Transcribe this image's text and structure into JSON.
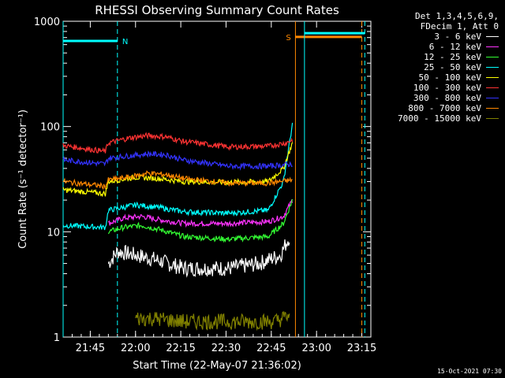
{
  "chart_data": {
    "type": "line",
    "title": "RHESSI Observing Summary Count Rates",
    "xlabel": "Start Time (22-May-07 21:36:02)",
    "ylabel": "Count Rate (s⁻¹ detector⁻¹)",
    "x_range_minutes": [
      0,
      102
    ],
    "x_ticks": [
      {
        "label": "21:45",
        "t": 9
      },
      {
        "label": "22:00",
        "t": 24
      },
      {
        "label": "22:15",
        "t": 39
      },
      {
        "label": "22:30",
        "t": 54
      },
      {
        "label": "22:45",
        "t": 69
      },
      {
        "label": "23:00",
        "t": 84
      },
      {
        "label": "23:15",
        "t": 99
      }
    ],
    "y_scale": "log",
    "ylim": [
      1,
      1000
    ],
    "y_ticks": [
      {
        "label": "1",
        "v": 1
      },
      {
        "label": "10",
        "v": 10
      },
      {
        "label": "100",
        "v": 100
      },
      {
        "label": "1000",
        "v": 1000
      }
    ],
    "legend_header": [
      "Det 1,3,4,5,6,9,",
      "FDecim 1, Att 0"
    ],
    "series": [
      {
        "name": "3 - 6 keV",
        "color": "#ffffff",
        "points": [
          [
            15,
            5
          ],
          [
            18,
            6.5
          ],
          [
            24,
            6
          ],
          [
            30,
            5.5
          ],
          [
            40,
            4.5
          ],
          [
            55,
            4.5
          ],
          [
            65,
            5
          ],
          [
            72,
            6
          ],
          [
            75,
            9
          ]
        ]
      },
      {
        "name": "6 - 12 keV",
        "color": "#ff33ff",
        "points": [
          [
            15,
            12
          ],
          [
            20,
            13.5
          ],
          [
            26,
            14
          ],
          [
            32,
            13
          ],
          [
            40,
            12
          ],
          [
            55,
            12
          ],
          [
            68,
            12.5
          ],
          [
            73,
            14
          ],
          [
            76,
            20
          ]
        ]
      },
      {
        "name": "12 - 25 keV",
        "color": "#33ff33",
        "points": [
          [
            15,
            10
          ],
          [
            20,
            11
          ],
          [
            26,
            11.5
          ],
          [
            32,
            10.5
          ],
          [
            40,
            9
          ],
          [
            55,
            8.5
          ],
          [
            68,
            9
          ],
          [
            73,
            12
          ],
          [
            76,
            20
          ]
        ]
      },
      {
        "name": "25 - 50 keV",
        "color": "#00ffff",
        "points": [
          [
            0,
            11.5
          ],
          [
            14,
            11
          ],
          [
            15,
            16
          ],
          [
            24,
            18
          ],
          [
            32,
            17
          ],
          [
            40,
            15.5
          ],
          [
            55,
            15
          ],
          [
            68,
            16
          ],
          [
            73,
            30
          ],
          [
            76,
            105
          ]
        ]
      },
      {
        "name": "50 - 100 keV",
        "color": "#ffff00",
        "points": [
          [
            0,
            25
          ],
          [
            14,
            23
          ],
          [
            15,
            30
          ],
          [
            24,
            33
          ],
          [
            32,
            32
          ],
          [
            40,
            30
          ],
          [
            55,
            29.5
          ],
          [
            68,
            30
          ],
          [
            73,
            40
          ],
          [
            76,
            70
          ]
        ]
      },
      {
        "name": "100 - 300 keV",
        "color": "#ff3333",
        "points": [
          [
            0,
            66
          ],
          [
            14,
            58
          ],
          [
            15,
            70
          ],
          [
            22,
            78
          ],
          [
            28,
            82
          ],
          [
            34,
            80
          ],
          [
            40,
            72
          ],
          [
            55,
            64
          ],
          [
            68,
            65
          ],
          [
            74,
            70
          ],
          [
            76,
            75
          ]
        ]
      },
      {
        "name": "300 - 800 keV",
        "color": "#3333ff",
        "points": [
          [
            0,
            48
          ],
          [
            14,
            44
          ],
          [
            15,
            50
          ],
          [
            20,
            52
          ],
          [
            28,
            55
          ],
          [
            34,
            54
          ],
          [
            40,
            48
          ],
          [
            55,
            42
          ],
          [
            68,
            42
          ],
          [
            76,
            44
          ]
        ]
      },
      {
        "name": "800 - 7000 keV",
        "color": "#ff8800",
        "points": [
          [
            0,
            30
          ],
          [
            14,
            27
          ],
          [
            15,
            31
          ],
          [
            22,
            33
          ],
          [
            28,
            36
          ],
          [
            34,
            35
          ],
          [
            40,
            32
          ],
          [
            55,
            29
          ],
          [
            68,
            29
          ],
          [
            76,
            31
          ]
        ]
      },
      {
        "name": "7000 - 15000 keV",
        "color": "#808000",
        "points": [
          [
            24,
            1.5
          ],
          [
            30,
            1.5
          ],
          [
            40,
            1.4
          ],
          [
            70,
            1.4
          ],
          [
            75,
            1.6
          ]
        ]
      }
    ],
    "flags": [
      {
        "label": "N",
        "color": "#00ffff",
        "t_start": 0,
        "t_end": 18
      },
      {
        "label": "S",
        "color": "#ff8800",
        "t_start": 77,
        "t_end": 99
      },
      {
        "label": "",
        "color": "#00ffff",
        "t_start": 80,
        "t_end": 100
      }
    ],
    "timestamp": "15-Oct-2021 07:30"
  }
}
